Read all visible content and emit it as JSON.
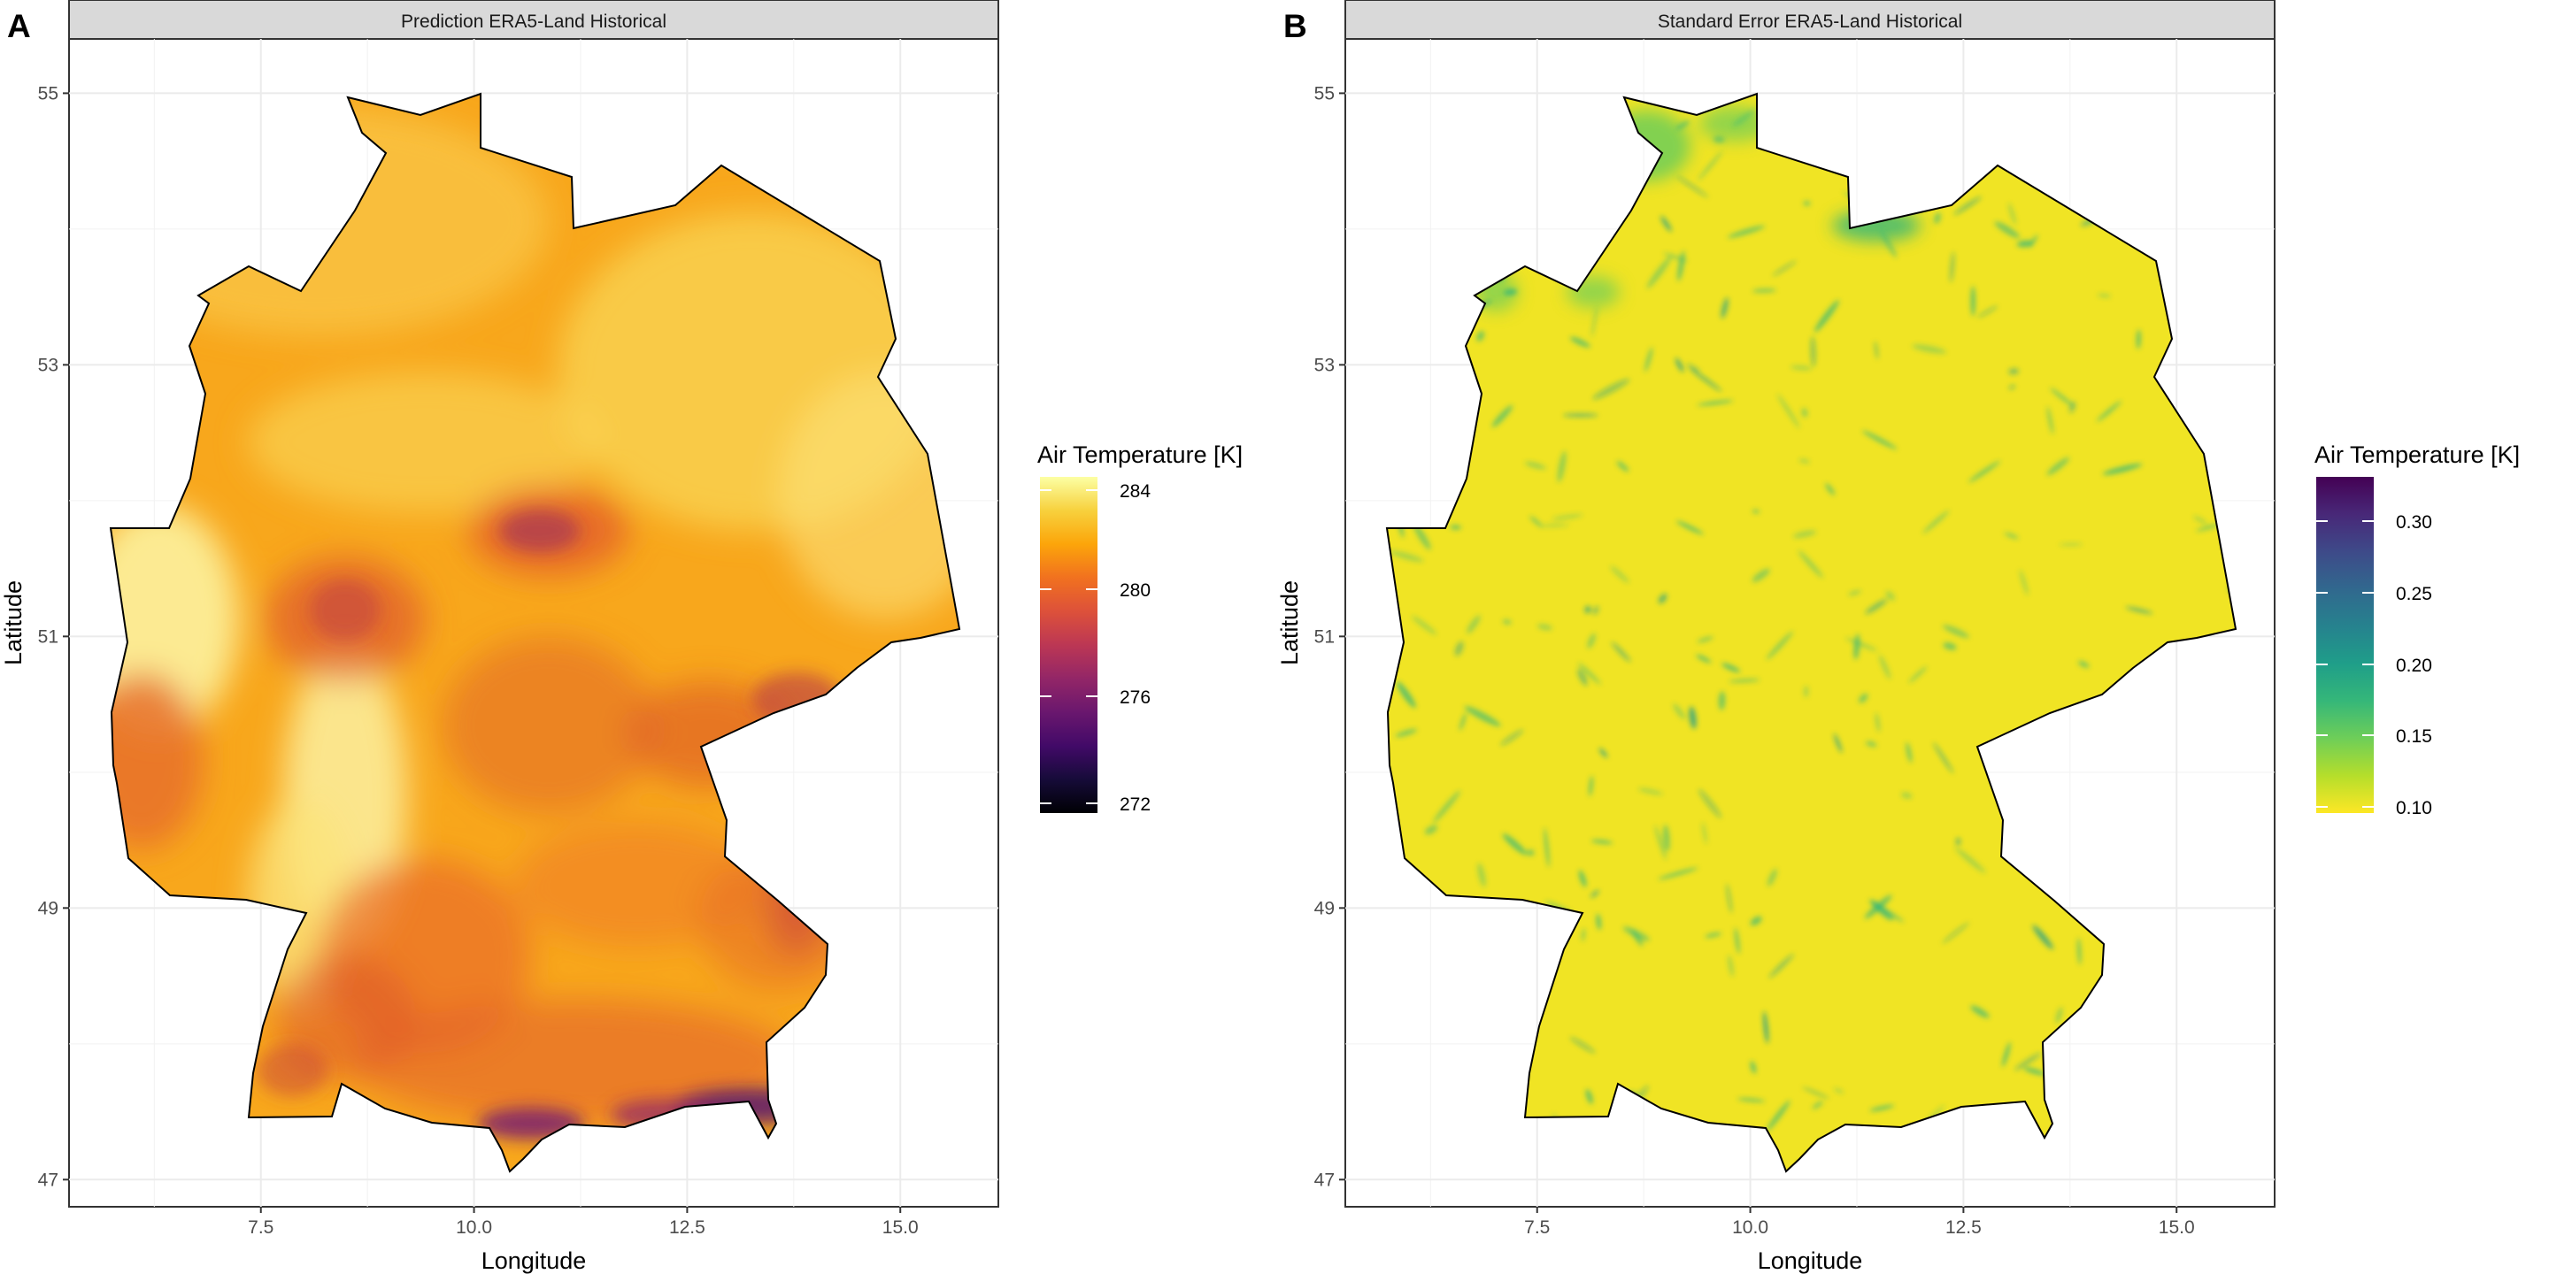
{
  "figure": {
    "panels": [
      {
        "tag": "A",
        "strip_title": "Prediction ERA5-Land Historical",
        "x_axis_title": "Longitude",
        "y_axis_title": "Latitude",
        "x_ticks": [
          "7.5",
          "10.0",
          "12.5",
          "15.0"
        ],
        "y_ticks": [
          "47",
          "49",
          "51",
          "53",
          "55"
        ],
        "legend": {
          "title": "Air Temperature [K]",
          "labels": [
            "284",
            "280",
            "276",
            "272"
          ],
          "colormap": "inferno",
          "colors": [
            "#fcffa4",
            "#f7d13d",
            "#fca50a",
            "#f1711f",
            "#dd513a",
            "#bc3754",
            "#932667",
            "#6a176e",
            "#420a68",
            "#160b39",
            "#000004"
          ]
        },
        "map_colors": {
          "base": "#f8a71c",
          "warm_lowlands": "#fbe37a",
          "cool_uplands": "#d9502c",
          "alps": "#5a1a6e"
        }
      },
      {
        "tag": "B",
        "strip_title": "Standard Error ERA5-Land Historical",
        "x_axis_title": "Longitude",
        "y_axis_title": "Latitude",
        "x_ticks": [
          "7.5",
          "10.0",
          "12.5",
          "15.0"
        ],
        "y_ticks": [
          "47",
          "49",
          "51",
          "53",
          "55"
        ],
        "legend": {
          "title": "Air Temperature [K]",
          "labels": [
            "0.30",
            "0.25",
            "0.20",
            "0.15",
            "0.10"
          ],
          "colormap": "viridis",
          "colors": [
            "#440154",
            "#482878",
            "#3e4a89",
            "#31688e",
            "#26828e",
            "#1f9e89",
            "#35b779",
            "#6ece58",
            "#b5de2b",
            "#fde725"
          ]
        },
        "map_colors": {
          "base": "#f0e424",
          "speckle": "#35b779",
          "speckle_dark": "#1f9e89"
        }
      }
    ]
  }
}
